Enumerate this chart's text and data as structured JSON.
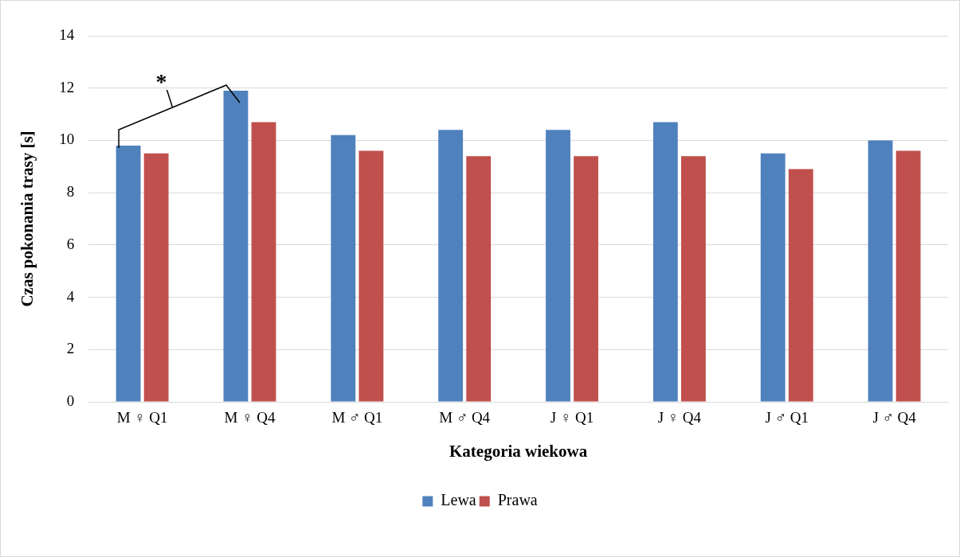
{
  "chart_data": {
    "type": "bar",
    "xlabel": "Kategoria wiekowa",
    "ylabel": "Czas pokonania trasy [s]",
    "categories": [
      "M ♀ Q1",
      "M ♀ Q4",
      "M ♂ Q1",
      "M ♂ Q4",
      "J ♀ Q1",
      "J ♀ Q4",
      "J ♂ Q1",
      "J ♂ Q4"
    ],
    "series": [
      {
        "name": "Lewa",
        "color": "#4f81bd",
        "values": [
          9.8,
          11.9,
          10.2,
          10.4,
          10.4,
          10.7,
          9.5,
          10.0
        ]
      },
      {
        "name": "Prawa",
        "color": "#c0504d",
        "values": [
          9.5,
          10.7,
          9.6,
          9.4,
          9.4,
          9.4,
          8.9,
          9.6
        ]
      }
    ],
    "ylim": [
      0,
      14
    ],
    "yticks": [
      0,
      2,
      4,
      6,
      8,
      10,
      12,
      14
    ],
    "grid": "y",
    "legend": "bottom",
    "annotations": [
      "*"
    ]
  }
}
